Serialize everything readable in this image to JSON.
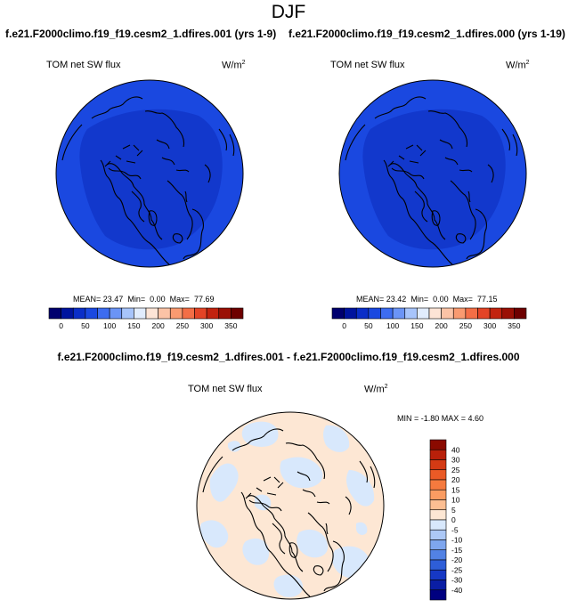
{
  "title": "DJF",
  "panels": [
    {
      "case_title": "f.e21.F2000climo.f19_f19.cesm2_1.dfires.001 (yrs 1-9)",
      "variable": "TOM net SW flux",
      "units": "W/m",
      "units_sup": "2",
      "stats": {
        "mean_label": "MEAN=",
        "mean": "23.47",
        "min_label": "Min=",
        "min": "0.00",
        "max_label": "Max=",
        "max": "77.69"
      }
    },
    {
      "case_title": "f.e21.F2000climo.f19_f19.cesm2_1.dfires.000 (yrs 1-19)",
      "variable": "TOM net SW flux",
      "units": "W/m",
      "units_sup": "2",
      "stats": {
        "mean_label": "MEAN=",
        "mean": "23.42",
        "min_label": "Min=",
        "min": "0.00",
        "max_label": "Max=",
        "max": "77.15"
      }
    }
  ],
  "diff_panel": {
    "title": "f.e21.F2000climo.f19_f19.cesm2_1.dfires.001 - f.e21.F2000climo.f19_f19.cesm2_1.dfires.000",
    "variable": "TOM net SW flux",
    "units": "W/m",
    "units_sup": "2",
    "stats_text": "MIN = -1.80 MAX =  4.60"
  },
  "colors": {
    "field_outer": "#1a48e0",
    "field_inner": "#1238cc",
    "diff_positive": "#fde7d4",
    "diff_negative": "#d8e8fc",
    "coast": "#000000"
  },
  "chart_data": [
    {
      "type": "heatmap",
      "projection": "north-polar-stereographic",
      "colorbar": {
        "orientation": "horizontal",
        "tick_labels": [
          "0",
          "50",
          "100",
          "150",
          "200",
          "250",
          "300",
          "350"
        ],
        "levels": [
          0,
          25,
          50,
          75,
          100,
          125,
          150,
          175,
          200,
          225,
          250,
          275,
          300,
          325,
          350
        ],
        "colors": [
          "#00006e",
          "#00149e",
          "#0a2ec8",
          "#1a48e0",
          "#3d6cf0",
          "#6b94f6",
          "#a7c4fb",
          "#e1ecfd",
          "#fde4d6",
          "#fbc3a6",
          "#f99a70",
          "#f36e46",
          "#e34426",
          "#c2230f",
          "#9a1005",
          "#6e0000"
        ]
      },
      "mean": 23.47,
      "min": 0.0,
      "max": 77.69
    },
    {
      "type": "heatmap",
      "projection": "north-polar-stereographic",
      "colorbar": {
        "orientation": "horizontal",
        "tick_labels": [
          "0",
          "50",
          "100",
          "150",
          "200",
          "250",
          "300",
          "350"
        ],
        "levels": [
          0,
          25,
          50,
          75,
          100,
          125,
          150,
          175,
          200,
          225,
          250,
          275,
          300,
          325,
          350
        ],
        "colors": [
          "#00006e",
          "#00149e",
          "#0a2ec8",
          "#1a48e0",
          "#3d6cf0",
          "#6b94f6",
          "#a7c4fb",
          "#e1ecfd",
          "#fde4d6",
          "#fbc3a6",
          "#f99a70",
          "#f36e46",
          "#e34426",
          "#c2230f",
          "#9a1005",
          "#6e0000"
        ]
      },
      "mean": 23.42,
      "min": 0.0,
      "max": 77.15
    },
    {
      "type": "heatmap",
      "projection": "north-polar-stereographic",
      "colorbar": {
        "orientation": "vertical",
        "tick_labels": [
          "40",
          "30",
          "25",
          "20",
          "15",
          "10",
          "5",
          "0",
          "-5",
          "-10",
          "-15",
          "-20",
          "-25",
          "-30",
          "-40"
        ],
        "colors": [
          "#8a0a00",
          "#b8200a",
          "#d43a14",
          "#ea5a26",
          "#f57a3e",
          "#fa9c62",
          "#fcbe92",
          "#fde7d4",
          "#d8e8fc",
          "#acc8f6",
          "#7ea6ee",
          "#5282e4",
          "#2e5ed8",
          "#1638c4",
          "#0a1ea4",
          "#000080"
        ]
      },
      "min": -1.8,
      "max": 4.6
    }
  ]
}
